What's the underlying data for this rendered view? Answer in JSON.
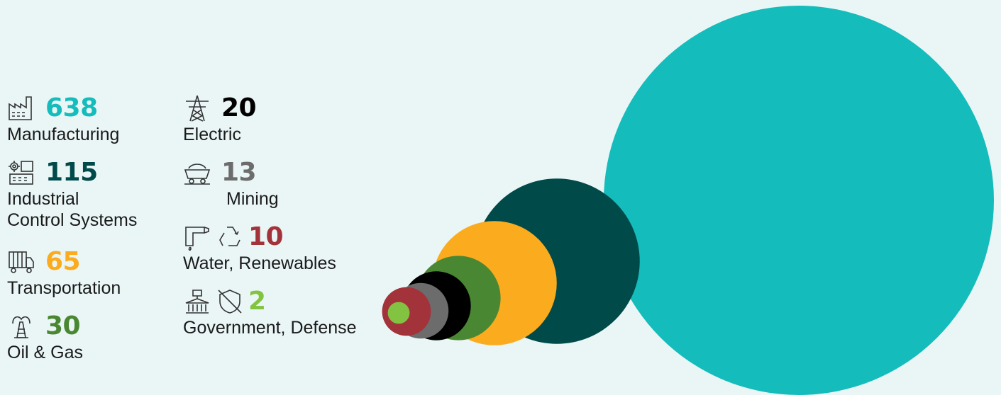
{
  "chart_data": {
    "type": "bubble",
    "series": [
      {
        "name": "Manufacturing",
        "value": 638,
        "color": "#14bcbc",
        "icon": "factory-icon"
      },
      {
        "name": "Industrial Control Systems",
        "value": 115,
        "color": "#004a4a",
        "icon": "control-panel-icon"
      },
      {
        "name": "Transportation",
        "value": 65,
        "color": "#fbab1e",
        "icon": "truck-icon"
      },
      {
        "name": "Oil & Gas",
        "value": 30,
        "color": "#4a8732",
        "icon": "oil-rig-icon"
      },
      {
        "name": "Electric",
        "value": 20,
        "color": "#000000",
        "icon": "power-tower-icon"
      },
      {
        "name": "Mining",
        "value": 13,
        "color": "#6c6c6c",
        "icon": "mine-cart-icon"
      },
      {
        "name": "Water, Renewables",
        "value": 10,
        "color": "#a3333b",
        "icon": "faucet-recycle-icon"
      },
      {
        "name": "Government, Defense",
        "value": 2,
        "color": "#82c341",
        "icon": "government-shield-icon"
      }
    ]
  },
  "entries": {
    "manufacturing": {
      "value": "638",
      "label": "Manufacturing"
    },
    "ics": {
      "value": "115",
      "label_line1": "Industrial",
      "label_line2": "Control Systems"
    },
    "transportation": {
      "value": "65",
      "label": "Transportation"
    },
    "oil_gas": {
      "value": "30",
      "label": "Oil & Gas"
    },
    "electric": {
      "value": "20",
      "label": "Electric"
    },
    "mining": {
      "value": "13",
      "label": "Mining"
    },
    "water": {
      "value": "10",
      "label": "Water, Renewables"
    },
    "government": {
      "value": "2",
      "label": "Government, Defense"
    }
  }
}
